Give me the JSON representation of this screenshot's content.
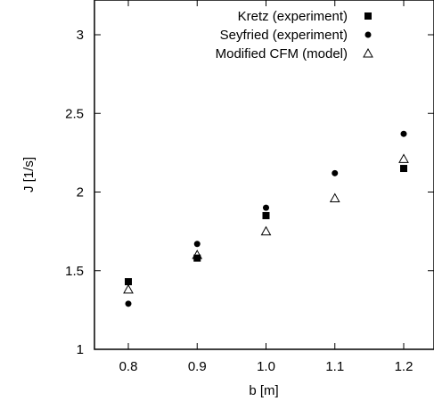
{
  "chart_data": {
    "type": "scatter",
    "xlabel": "b [m]",
    "ylabel": "J [1/s]",
    "xlim": [
      0.75,
      1.25
    ],
    "ylim": [
      1.0,
      3.2
    ],
    "x_ticks": [
      0.8,
      0.9,
      1.0,
      1.1,
      1.2
    ],
    "x_tick_labels": [
      "0.8",
      "0.9",
      "1.0",
      "1.1",
      "1.2"
    ],
    "y_ticks": [
      1,
      1.5,
      2,
      2.5,
      3
    ],
    "y_tick_labels": [
      "1",
      "1.5",
      "2",
      "2.5",
      "3"
    ],
    "grid": false,
    "legend_position": "top-right",
    "series": [
      {
        "name": "Kretz (experiment)",
        "marker": "square-filled",
        "color": "#000000",
        "x": [
          0.8,
          0.9,
          1.0,
          1.2
        ],
        "y": [
          1.43,
          1.58,
          1.85,
          2.15
        ]
      },
      {
        "name": "Seyfried (experiment)",
        "marker": "circle-filled",
        "color": "#000000",
        "x": [
          0.8,
          0.9,
          1.0,
          1.1,
          1.2
        ],
        "y": [
          1.29,
          1.67,
          1.9,
          2.12,
          2.37
        ]
      },
      {
        "name": "Modified CFM (model)",
        "marker": "triangle-open",
        "color": "#000000",
        "x": [
          0.8,
          0.9,
          1.0,
          1.1,
          1.2
        ],
        "y": [
          1.38,
          1.6,
          1.75,
          1.96,
          2.21
        ]
      }
    ]
  }
}
